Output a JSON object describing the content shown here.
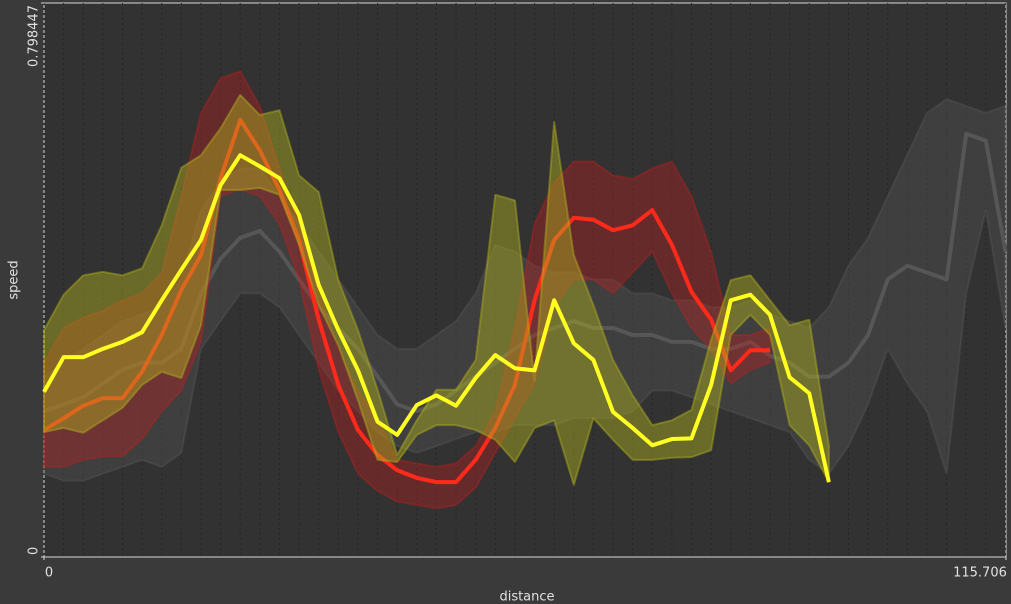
{
  "chart_data": {
    "type": "line",
    "x_label": "distance",
    "y_label": "speed",
    "xlim": [
      0,
      115.706
    ],
    "ylim": [
      0,
      0.798447
    ],
    "xticks": [
      0,
      115.706
    ],
    "yticks": [
      0,
      0.798447
    ],
    "x": [
      0,
      2.36,
      4.72,
      7.08,
      9.44,
      11.8,
      14.16,
      16.52,
      18.88,
      21.24,
      23.6,
      25.96,
      28.32,
      30.68,
      33.04,
      35.4,
      37.76,
      40.12,
      42.48,
      44.84,
      47.2,
      49.56,
      51.92,
      54.28,
      56.64,
      59,
      61.36,
      63.72,
      66.08,
      68.44,
      70.8,
      73.16,
      75.52,
      77.88,
      80.24,
      82.6,
      84.96,
      87.32,
      89.68,
      92.04,
      94.4,
      96.76,
      99.12,
      101.48,
      103.84,
      106.2,
      108.56,
      110.92,
      113.28,
      115.64
    ],
    "series": [
      {
        "color": "#565656",
        "band_color": "rgba(95,95,95,0.3)",
        "values": [
          0.21,
          0.22,
          0.23,
          0.25,
          0.27,
          0.28,
          0.28,
          0.3,
          0.38,
          0.43,
          0.46,
          0.47,
          0.44,
          0.4,
          0.36,
          0.33,
          0.3,
          0.26,
          0.22,
          0.21,
          0.22,
          0.24,
          0.26,
          0.28,
          0.3,
          0.32,
          0.33,
          0.34,
          0.33,
          0.33,
          0.32,
          0.32,
          0.31,
          0.31,
          0.3,
          0.3,
          0.31,
          0.29,
          0.28,
          0.26,
          0.26,
          0.28,
          0.32,
          0.4,
          0.42,
          0.41,
          0.4,
          0.61,
          0.6,
          0.44
        ],
        "upper": [
          0.26,
          0.28,
          0.3,
          0.32,
          0.34,
          0.35,
          0.36,
          0.4,
          0.5,
          0.54,
          0.56,
          0.56,
          0.52,
          0.48,
          0.44,
          0.4,
          0.36,
          0.32,
          0.3,
          0.3,
          0.32,
          0.34,
          0.38,
          0.45,
          0.44,
          0.42,
          0.41,
          0.41,
          0.4,
          0.4,
          0.38,
          0.38,
          0.37,
          0.37,
          0.36,
          0.36,
          0.37,
          0.35,
          0.34,
          0.33,
          0.36,
          0.42,
          0.46,
          0.52,
          0.58,
          0.64,
          0.66,
          0.65,
          0.64,
          0.65
        ],
        "lower": [
          0.12,
          0.11,
          0.11,
          0.12,
          0.13,
          0.14,
          0.13,
          0.15,
          0.3,
          0.34,
          0.38,
          0.38,
          0.36,
          0.32,
          0.28,
          0.24,
          0.21,
          0.18,
          0.16,
          0.15,
          0.16,
          0.17,
          0.18,
          0.18,
          0.19,
          0.19,
          0.19,
          0.2,
          0.2,
          0.2,
          0.21,
          0.24,
          0.24,
          0.23,
          0.22,
          0.21,
          0.2,
          0.19,
          0.18,
          0.14,
          0.12,
          0.16,
          0.22,
          0.3,
          0.25,
          0.21,
          0.12,
          0.38,
          0.5,
          0.33
        ]
      },
      {
        "color": "#ff2a1a",
        "band_color": "rgba(200,30,30,0.35)",
        "values": [
          0.183,
          0.2,
          0.218,
          0.229,
          0.229,
          0.267,
          0.32,
          0.385,
          0.435,
          0.546,
          0.63,
          0.586,
          0.529,
          0.457,
          0.342,
          0.248,
          0.183,
          0.147,
          0.125,
          0.114,
          0.108,
          0.108,
          0.14,
          0.186,
          0.248,
          0.37,
          0.457,
          0.489,
          0.486,
          0.471,
          0.478,
          0.5,
          0.45,
          0.382,
          0.342,
          0.269,
          0.298,
          0.298,
          null,
          null,
          null,
          null,
          null,
          null,
          null,
          null,
          null,
          null,
          null,
          null
        ],
        "upper": [
          0.28,
          0.33,
          0.345,
          0.355,
          0.37,
          0.38,
          0.41,
          0.52,
          0.64,
          0.69,
          0.7,
          0.65,
          0.56,
          0.48,
          0.38,
          0.3,
          0.24,
          0.2,
          0.14,
          0.135,
          0.13,
          0.135,
          0.16,
          0.21,
          0.33,
          0.48,
          0.54,
          0.57,
          0.57,
          0.55,
          0.545,
          0.56,
          0.57,
          0.52,
          0.44,
          0.32,
          0.32,
          0.33,
          null,
          null,
          null,
          null,
          null,
          null,
          null,
          null,
          null,
          null,
          null,
          null
        ],
        "lower": [
          0.13,
          0.13,
          0.14,
          0.145,
          0.145,
          0.17,
          0.21,
          0.24,
          0.31,
          0.52,
          0.53,
          0.52,
          0.48,
          0.4,
          0.27,
          0.18,
          0.12,
          0.095,
          0.08,
          0.075,
          0.07,
          0.075,
          0.1,
          0.15,
          0.2,
          0.25,
          0.36,
          0.4,
          0.4,
          0.38,
          0.41,
          0.44,
          0.38,
          0.33,
          0.3,
          0.25,
          0.27,
          0.28,
          null,
          null,
          null,
          null,
          null,
          null,
          null,
          null,
          null,
          null,
          null,
          null
        ]
      },
      {
        "color": "#ffff22",
        "band_color": "rgba(175,175,30,0.45)",
        "values": [
          0.238,
          0.288,
          0.288,
          0.3,
          0.31,
          0.324,
          0.37,
          0.414,
          0.457,
          0.536,
          0.579,
          0.563,
          0.546,
          0.493,
          0.392,
          0.327,
          0.269,
          0.195,
          0.176,
          0.219,
          0.233,
          0.218,
          0.258,
          0.291,
          0.272,
          0.269,
          0.37,
          0.308,
          0.284,
          0.209,
          0.186,
          0.161,
          0.17,
          0.171,
          0.248,
          0.37,
          0.378,
          0.349,
          0.259,
          0.236,
          0.108,
          null,
          null,
          null,
          null,
          null,
          null,
          null,
          null,
          null
        ],
        "upper": [
          0.327,
          0.378,
          0.406,
          0.411,
          0.406,
          0.416,
          0.478,
          0.561,
          0.579,
          0.618,
          0.666,
          0.637,
          0.644,
          0.55,
          0.526,
          0.399,
          0.327,
          0.241,
          0.147,
          0.197,
          0.241,
          0.241,
          0.284,
          0.522,
          0.514,
          0.255,
          0.627,
          0.435,
          0.363,
          0.284,
          0.233,
          0.19,
          0.197,
          0.212,
          0.313,
          0.399,
          0.406,
          0.37,
          0.334,
          0.342,
          0.161,
          null,
          null,
          null,
          null,
          null,
          null,
          null,
          null,
          null
        ],
        "lower": [
          0.18,
          0.186,
          0.179,
          0.197,
          0.215,
          0.248,
          0.267,
          0.258,
          0.334,
          0.529,
          0.529,
          0.532,
          0.522,
          0.45,
          0.363,
          0.305,
          0.226,
          0.14,
          0.137,
          0.176,
          0.19,
          0.19,
          0.183,
          0.169,
          0.137,
          0.186,
          0.197,
          0.104,
          0.2,
          0.169,
          0.14,
          0.14,
          0.143,
          0.144,
          0.154,
          0.32,
          0.349,
          0.32,
          0.19,
          0.161,
          0.108,
          null,
          null,
          null,
          null,
          null,
          null,
          null,
          null,
          null
        ]
      }
    ]
  }
}
